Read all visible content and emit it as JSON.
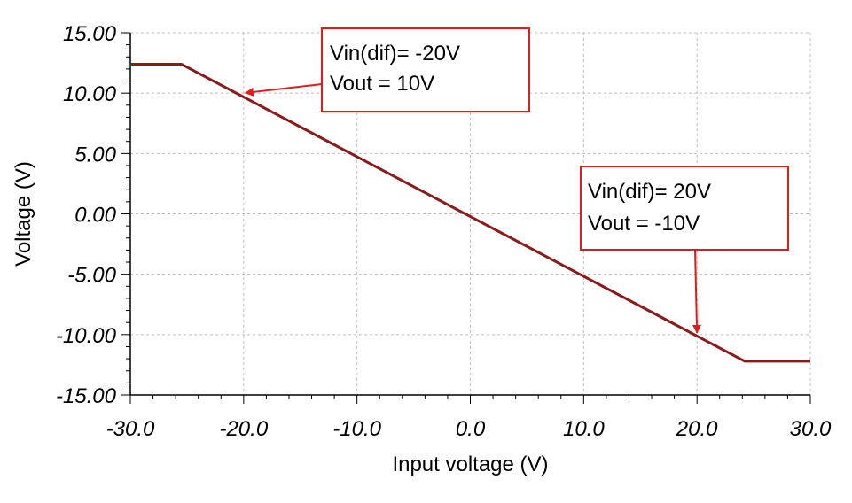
{
  "chart_data": {
    "type": "line",
    "title": "",
    "xlabel": "Input voltage (V)",
    "ylabel": "Voltage (V)",
    "xlim": [
      -30,
      30
    ],
    "ylim": [
      -15,
      15
    ],
    "grid": true,
    "x_ticks": [
      -30,
      -20,
      -10,
      0,
      10,
      20,
      30
    ],
    "x_tick_labels": [
      "-30.0",
      "-20.0",
      "-10.0",
      "0.0",
      "10.0",
      "20.0",
      "30.0"
    ],
    "y_ticks": [
      15,
      10,
      5,
      0,
      -5,
      -10,
      -15
    ],
    "y_tick_labels": [
      "15.00",
      "10.00",
      "5.00",
      "0.00",
      "-5.00",
      "-10.00",
      "-15.00"
    ],
    "series": [
      {
        "color": "#8b1a1a",
        "x": [
          -30,
          -25.5,
          24.2,
          30
        ],
        "y": [
          12.4,
          12.4,
          -12.2,
          -12.2
        ]
      }
    ],
    "annotations": [
      {
        "lines": [
          "Vin(dif)= -20V",
          "Vout = 10V"
        ],
        "point": [
          -20,
          10
        ],
        "box_color": "#e31b1b",
        "arrow_color": "#e31b1b"
      },
      {
        "lines": [
          "Vin(dif)= 20V",
          "Vout = -10V"
        ],
        "point": [
          20,
          -10
        ],
        "box_color": "#e31b1b",
        "arrow_color": "#e31b1b"
      }
    ]
  }
}
